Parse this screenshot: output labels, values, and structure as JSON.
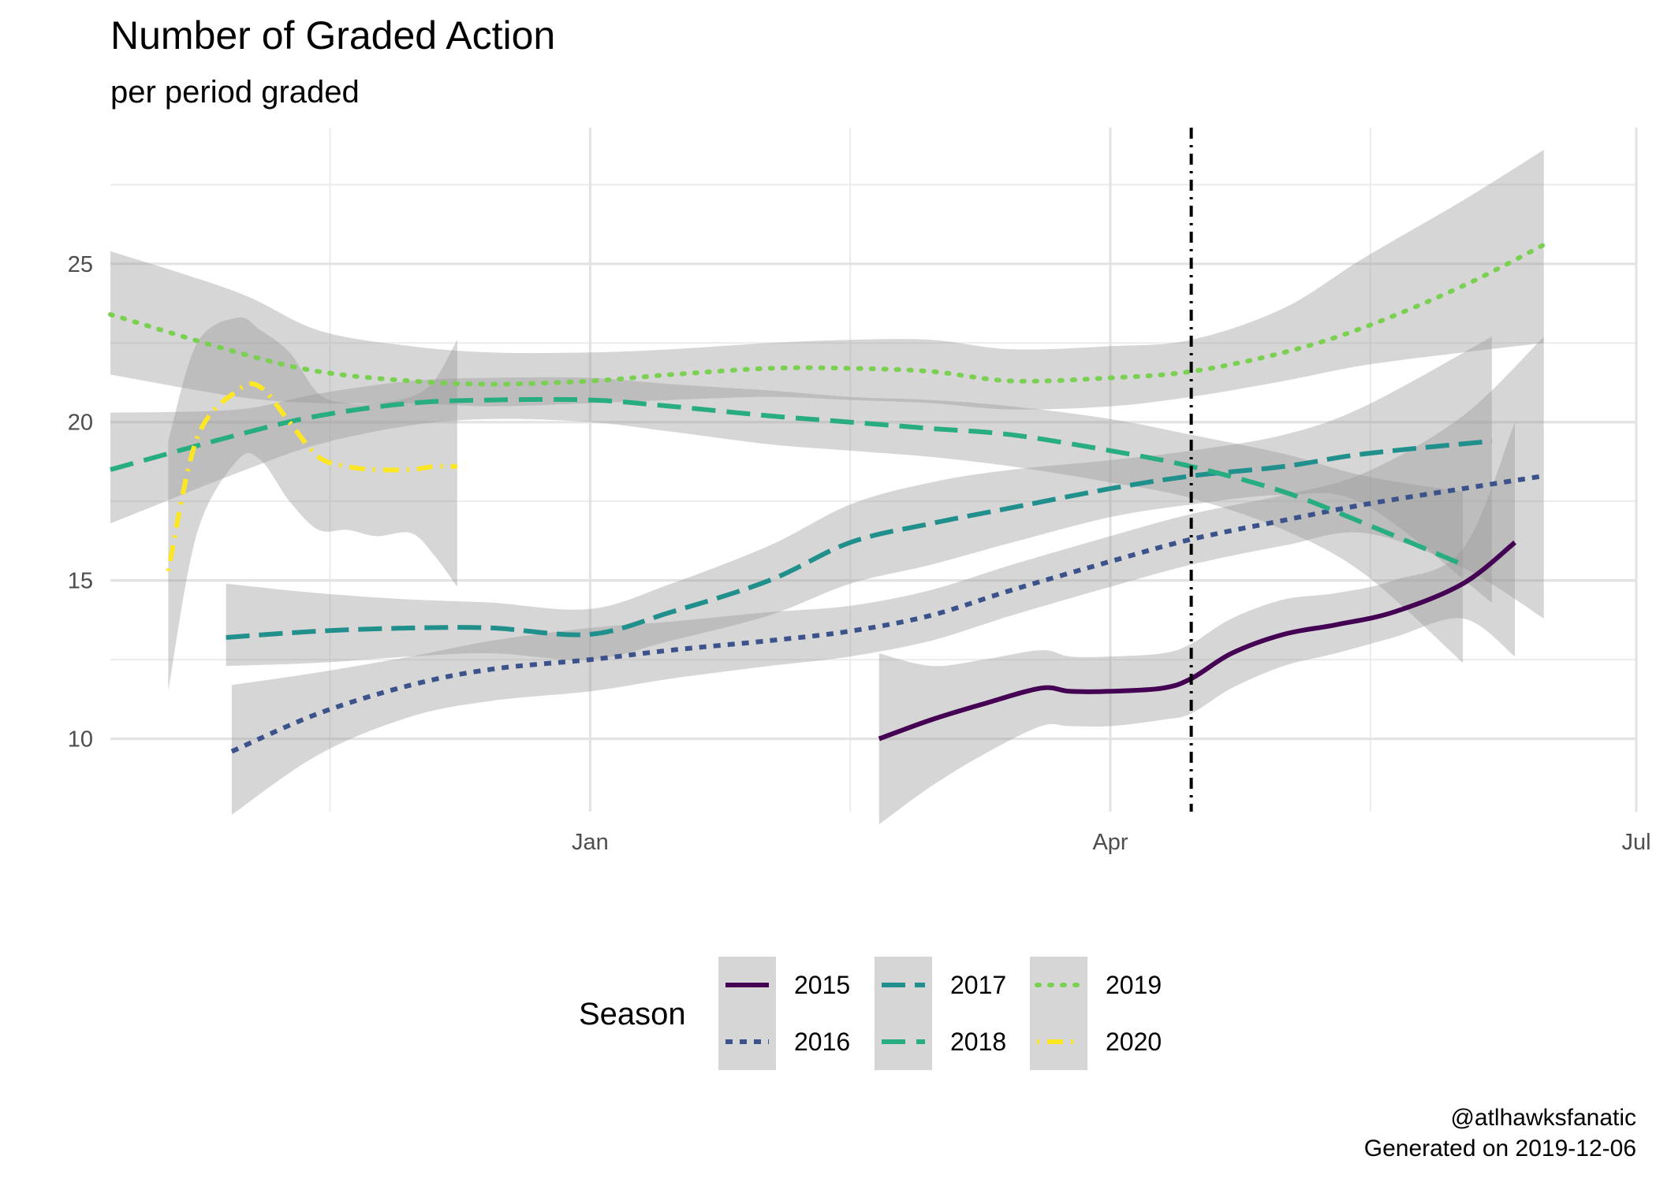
{
  "chart_data": {
    "type": "line",
    "title": "Number of Graded Action",
    "subtitle": "per period graded",
    "xlabel": "",
    "ylabel": "",
    "x_ticks": [
      "Jan",
      "Apr",
      "Jul"
    ],
    "y_ticks": [
      10,
      15,
      20,
      25
    ],
    "ylim": [
      7.7,
      29.3
    ],
    "xlim": [
      "Oct 10",
      "Jul 01"
    ],
    "grid": true,
    "legend_title": "Season",
    "legend_position": "bottom",
    "reference_line": {
      "x": "Apr 15",
      "style": "dot-dash"
    },
    "caption": [
      "@atlhawksfanatic",
      "Generated on 2019-12-06"
    ],
    "series": [
      {
        "name": "2015",
        "color": "#440154",
        "dash": "solid",
        "x": [
          "Feb 20",
          "Mar 01",
          "Mar 10",
          "Mar 20",
          "Mar 25",
          "Apr 01",
          "Apr 10",
          "Apr 15",
          "Apr 22",
          "May 01",
          "May 10",
          "May 20",
          "Jun 01",
          "Jun 10"
        ],
        "y": [
          10.0,
          10.6,
          11.1,
          11.6,
          11.5,
          11.5,
          11.6,
          11.9,
          12.7,
          13.3,
          13.6,
          14.0,
          14.9,
          16.2
        ],
        "lower": [
          7.3,
          8.5,
          9.5,
          10.4,
          10.4,
          10.4,
          10.6,
          10.8,
          11.6,
          12.3,
          12.7,
          13.2,
          13.8,
          12.6
        ],
        "upper": [
          12.7,
          12.3,
          12.5,
          12.8,
          12.6,
          12.6,
          12.7,
          13.0,
          13.8,
          14.4,
          14.6,
          15.0,
          16.0,
          20.0
        ]
      },
      {
        "name": "2016",
        "color": "#3B528B",
        "dash": "dot",
        "x": [
          "Oct 31",
          "Nov 15",
          "Dec 01",
          "Dec 15",
          "Jan 01",
          "Jan 15",
          "Feb 01",
          "Feb 15",
          "Mar 01",
          "Mar 15",
          "Apr 01",
          "Apr 15",
          "May 01",
          "May 15",
          "Jun 01",
          "Jun 15"
        ],
        "y": [
          9.6,
          10.8,
          11.7,
          12.2,
          12.5,
          12.8,
          13.1,
          13.4,
          13.9,
          14.7,
          15.6,
          16.3,
          16.9,
          17.4,
          17.9,
          18.3
        ],
        "lower": [
          7.6,
          9.5,
          10.7,
          11.2,
          11.5,
          11.9,
          12.3,
          12.6,
          13.1,
          13.9,
          14.8,
          15.5,
          16.1,
          16.5,
          15.4,
          13.8
        ],
        "upper": [
          11.7,
          12.1,
          12.6,
          13.1,
          13.5,
          13.7,
          14.0,
          14.2,
          14.7,
          15.5,
          16.4,
          17.1,
          17.7,
          18.4,
          20.2,
          22.7
        ]
      },
      {
        "name": "2017",
        "color": "#21908C",
        "dash": "longdash",
        "x": [
          "Oct 30",
          "Nov 15",
          "Dec 01",
          "Dec 15",
          "Jan 01",
          "Jan 15",
          "Feb 01",
          "Feb 15",
          "Mar 01",
          "Mar 15",
          "Apr 01",
          "Apr 15",
          "May 01",
          "May 15",
          "Jun 06"
        ],
        "y": [
          13.2,
          13.4,
          13.5,
          13.5,
          13.3,
          14.0,
          15.0,
          16.2,
          16.8,
          17.3,
          17.9,
          18.3,
          18.6,
          19.0,
          19.4
        ],
        "lower": [
          12.3,
          12.4,
          12.6,
          12.7,
          12.5,
          13.1,
          13.9,
          14.9,
          15.5,
          16.2,
          17.0,
          17.4,
          17.7,
          17.4,
          14.3
        ],
        "upper": [
          14.9,
          14.6,
          14.4,
          14.3,
          14.1,
          14.9,
          16.1,
          17.4,
          18.1,
          18.5,
          18.8,
          19.1,
          19.6,
          20.5,
          22.7
        ]
      },
      {
        "name": "2018",
        "color": "#27AD81",
        "dash": "dash",
        "x": [
          "Oct 10",
          "Nov 01",
          "Nov 15",
          "Dec 01",
          "Dec 15",
          "Jan 01",
          "Jan 15",
          "Feb 01",
          "Feb 15",
          "Mar 01",
          "Mar 15",
          "Apr 01",
          "Apr 15",
          "May 01",
          "May 15",
          "Jun 01"
        ],
        "y": [
          18.5,
          19.6,
          20.2,
          20.6,
          20.7,
          20.7,
          20.5,
          20.2,
          20.0,
          19.8,
          19.6,
          19.1,
          18.6,
          17.8,
          16.8,
          15.5
        ],
        "lower": [
          16.8,
          18.4,
          19.3,
          19.9,
          20.1,
          20.0,
          19.7,
          19.3,
          19.1,
          18.9,
          18.6,
          18.1,
          17.6,
          16.6,
          15.2,
          12.4
        ],
        "upper": [
          20.3,
          20.4,
          20.9,
          21.3,
          21.4,
          21.4,
          21.2,
          21.0,
          20.8,
          20.7,
          20.5,
          20.1,
          19.6,
          19.0,
          18.3,
          17.8
        ]
      },
      {
        "name": "2019",
        "color": "#7AD151",
        "dash": "dotted",
        "x": [
          "Oct 10",
          "Nov 01",
          "Nov 15",
          "Dec 01",
          "Dec 15",
          "Jan 01",
          "Jan 15",
          "Feb 01",
          "Feb 15",
          "Mar 01",
          "Mar 15",
          "Apr 01",
          "Apr 15",
          "May 01",
          "May 15",
          "Jun 01",
          "Jun 15"
        ],
        "y": [
          23.4,
          22.2,
          21.6,
          21.3,
          21.2,
          21.3,
          21.5,
          21.7,
          21.7,
          21.6,
          21.3,
          21.4,
          21.6,
          22.2,
          23.0,
          24.3,
          25.6
        ],
        "lower": [
          21.5,
          20.8,
          20.6,
          20.6,
          20.5,
          20.6,
          20.7,
          20.8,
          20.7,
          20.6,
          20.4,
          20.5,
          20.8,
          21.3,
          21.8,
          22.2,
          22.5
        ],
        "upper": [
          25.4,
          24.1,
          22.9,
          22.4,
          22.2,
          22.2,
          22.3,
          22.5,
          22.6,
          22.6,
          22.3,
          22.4,
          22.6,
          23.6,
          25.2,
          27.0,
          28.6
        ]
      },
      {
        "name": "2020",
        "color": "#FDE725",
        "dash": "dotdash",
        "x": [
          "Oct 20",
          "Oct 25",
          "Nov 01",
          "Nov 05",
          "Nov 10",
          "Nov 15",
          "Nov 20",
          "Nov 25",
          "Dec 01",
          "Dec 05",
          "Dec 09"
        ],
        "y": [
          15.3,
          19.5,
          21.0,
          21.1,
          20.0,
          18.9,
          18.6,
          18.5,
          18.5,
          18.6,
          18.6
        ],
        "lower": [
          11.5,
          16.5,
          18.8,
          18.8,
          17.5,
          16.6,
          16.6,
          16.4,
          16.5,
          15.8,
          14.8
        ],
        "upper": [
          19.4,
          22.5,
          23.3,
          22.9,
          22.2,
          20.9,
          20.6,
          20.6,
          20.8,
          21.3,
          22.6
        ]
      }
    ]
  }
}
